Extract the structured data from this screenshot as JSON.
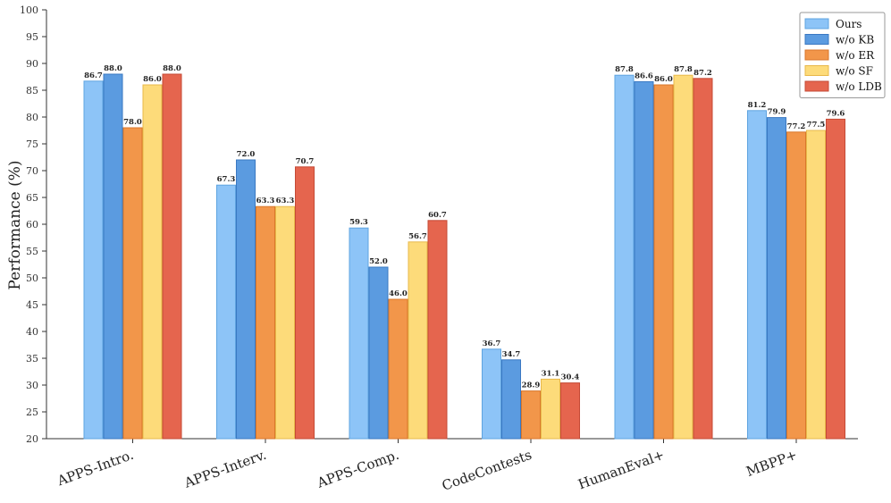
{
  "chart_data": {
    "type": "bar",
    "title": "",
    "xlabel": "",
    "ylabel": "Performance (%)",
    "ylim": [
      20,
      100
    ],
    "yticks": [
      20,
      25,
      30,
      35,
      40,
      45,
      50,
      55,
      60,
      65,
      70,
      75,
      80,
      85,
      90,
      95,
      100
    ],
    "grid": false,
    "legend_position": "top-right",
    "categories": [
      "APPS-Intro.",
      "APPS-Interv.",
      "APPS-Comp.",
      "CodeContests",
      "HumanEval+",
      "MBPP+"
    ],
    "series": [
      {
        "name": "Ours",
        "color": "#8dc4f7",
        "edge": "#5fa4e0",
        "values": [
          86.7,
          67.3,
          59.3,
          36.7,
          87.8,
          81.2
        ]
      },
      {
        "name": "w/o KB",
        "color": "#5b9be0",
        "edge": "#3a78c2",
        "values": [
          88.0,
          72.0,
          52.0,
          34.7,
          86.6,
          79.9
        ]
      },
      {
        "name": "w/o ER",
        "color": "#f2964a",
        "edge": "#d9772b",
        "values": [
          78.0,
          63.3,
          46.0,
          28.9,
          86.0,
          77.2
        ]
      },
      {
        "name": "w/o SF",
        "color": "#fddb7a",
        "edge": "#e8b84a",
        "values": [
          86.0,
          63.3,
          56.7,
          31.1,
          87.8,
          77.5
        ]
      },
      {
        "name": "w/o LDB",
        "color": "#e5654e",
        "edge": "#c54a36",
        "values": [
          88.0,
          70.7,
          60.7,
          30.4,
          87.2,
          79.6
        ]
      }
    ]
  }
}
